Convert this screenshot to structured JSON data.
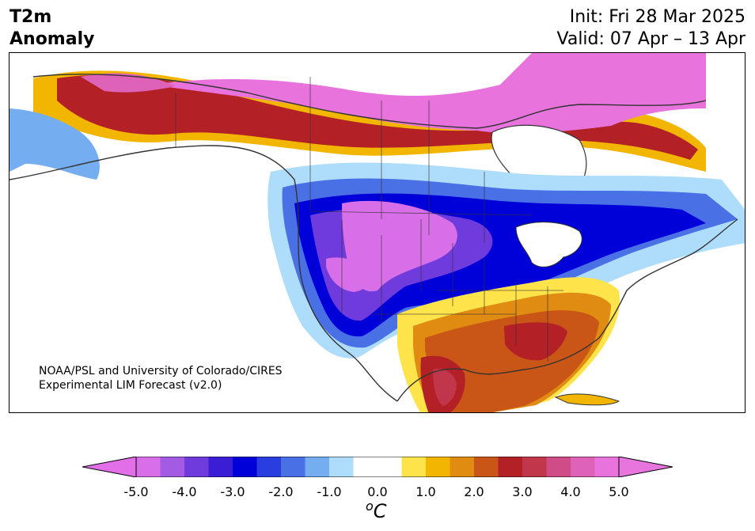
{
  "header": {
    "variable": "T2m",
    "quantity": "Anomaly",
    "init": "Init: Fri 28 Mar 2025",
    "valid": "Valid: 07 Apr – 13 Apr"
  },
  "credit": {
    "line1": "NOAA/PSL and University of Colorado/CIRES",
    "line2": "Experimental LIM Forecast (v2.0)"
  },
  "colorbar": {
    "min": -5.0,
    "max": 5.0,
    "step": 0.5,
    "ticks": [
      "-5.0",
      "-4.0",
      "-3.0",
      "-2.0",
      "-1.0",
      "0.0",
      "1.0",
      "2.0",
      "3.0",
      "4.0",
      "5.0"
    ],
    "units_base": "C",
    "units_sup": "o",
    "colors": [
      "#d86fe8",
      "#a45be3",
      "#6f3bdc",
      "#3a1ed6",
      "#0000d8",
      "#2a3ddf",
      "#4a70e6",
      "#74aef0",
      "#aedcfb",
      "#ffffff",
      "#ffffff",
      "#ffe34b",
      "#f2b500",
      "#e08c12",
      "#c95616",
      "#b32025",
      "#c1364a",
      "#d04c86",
      "#de62b8",
      "#e873dc"
    ],
    "under_color": "#e26ee8",
    "over_color": "#e874de"
  },
  "map": {
    "region": "North America",
    "features": [
      "continent",
      "US states",
      "Canadian provinces",
      "Mexico",
      "Cuba"
    ]
  }
}
